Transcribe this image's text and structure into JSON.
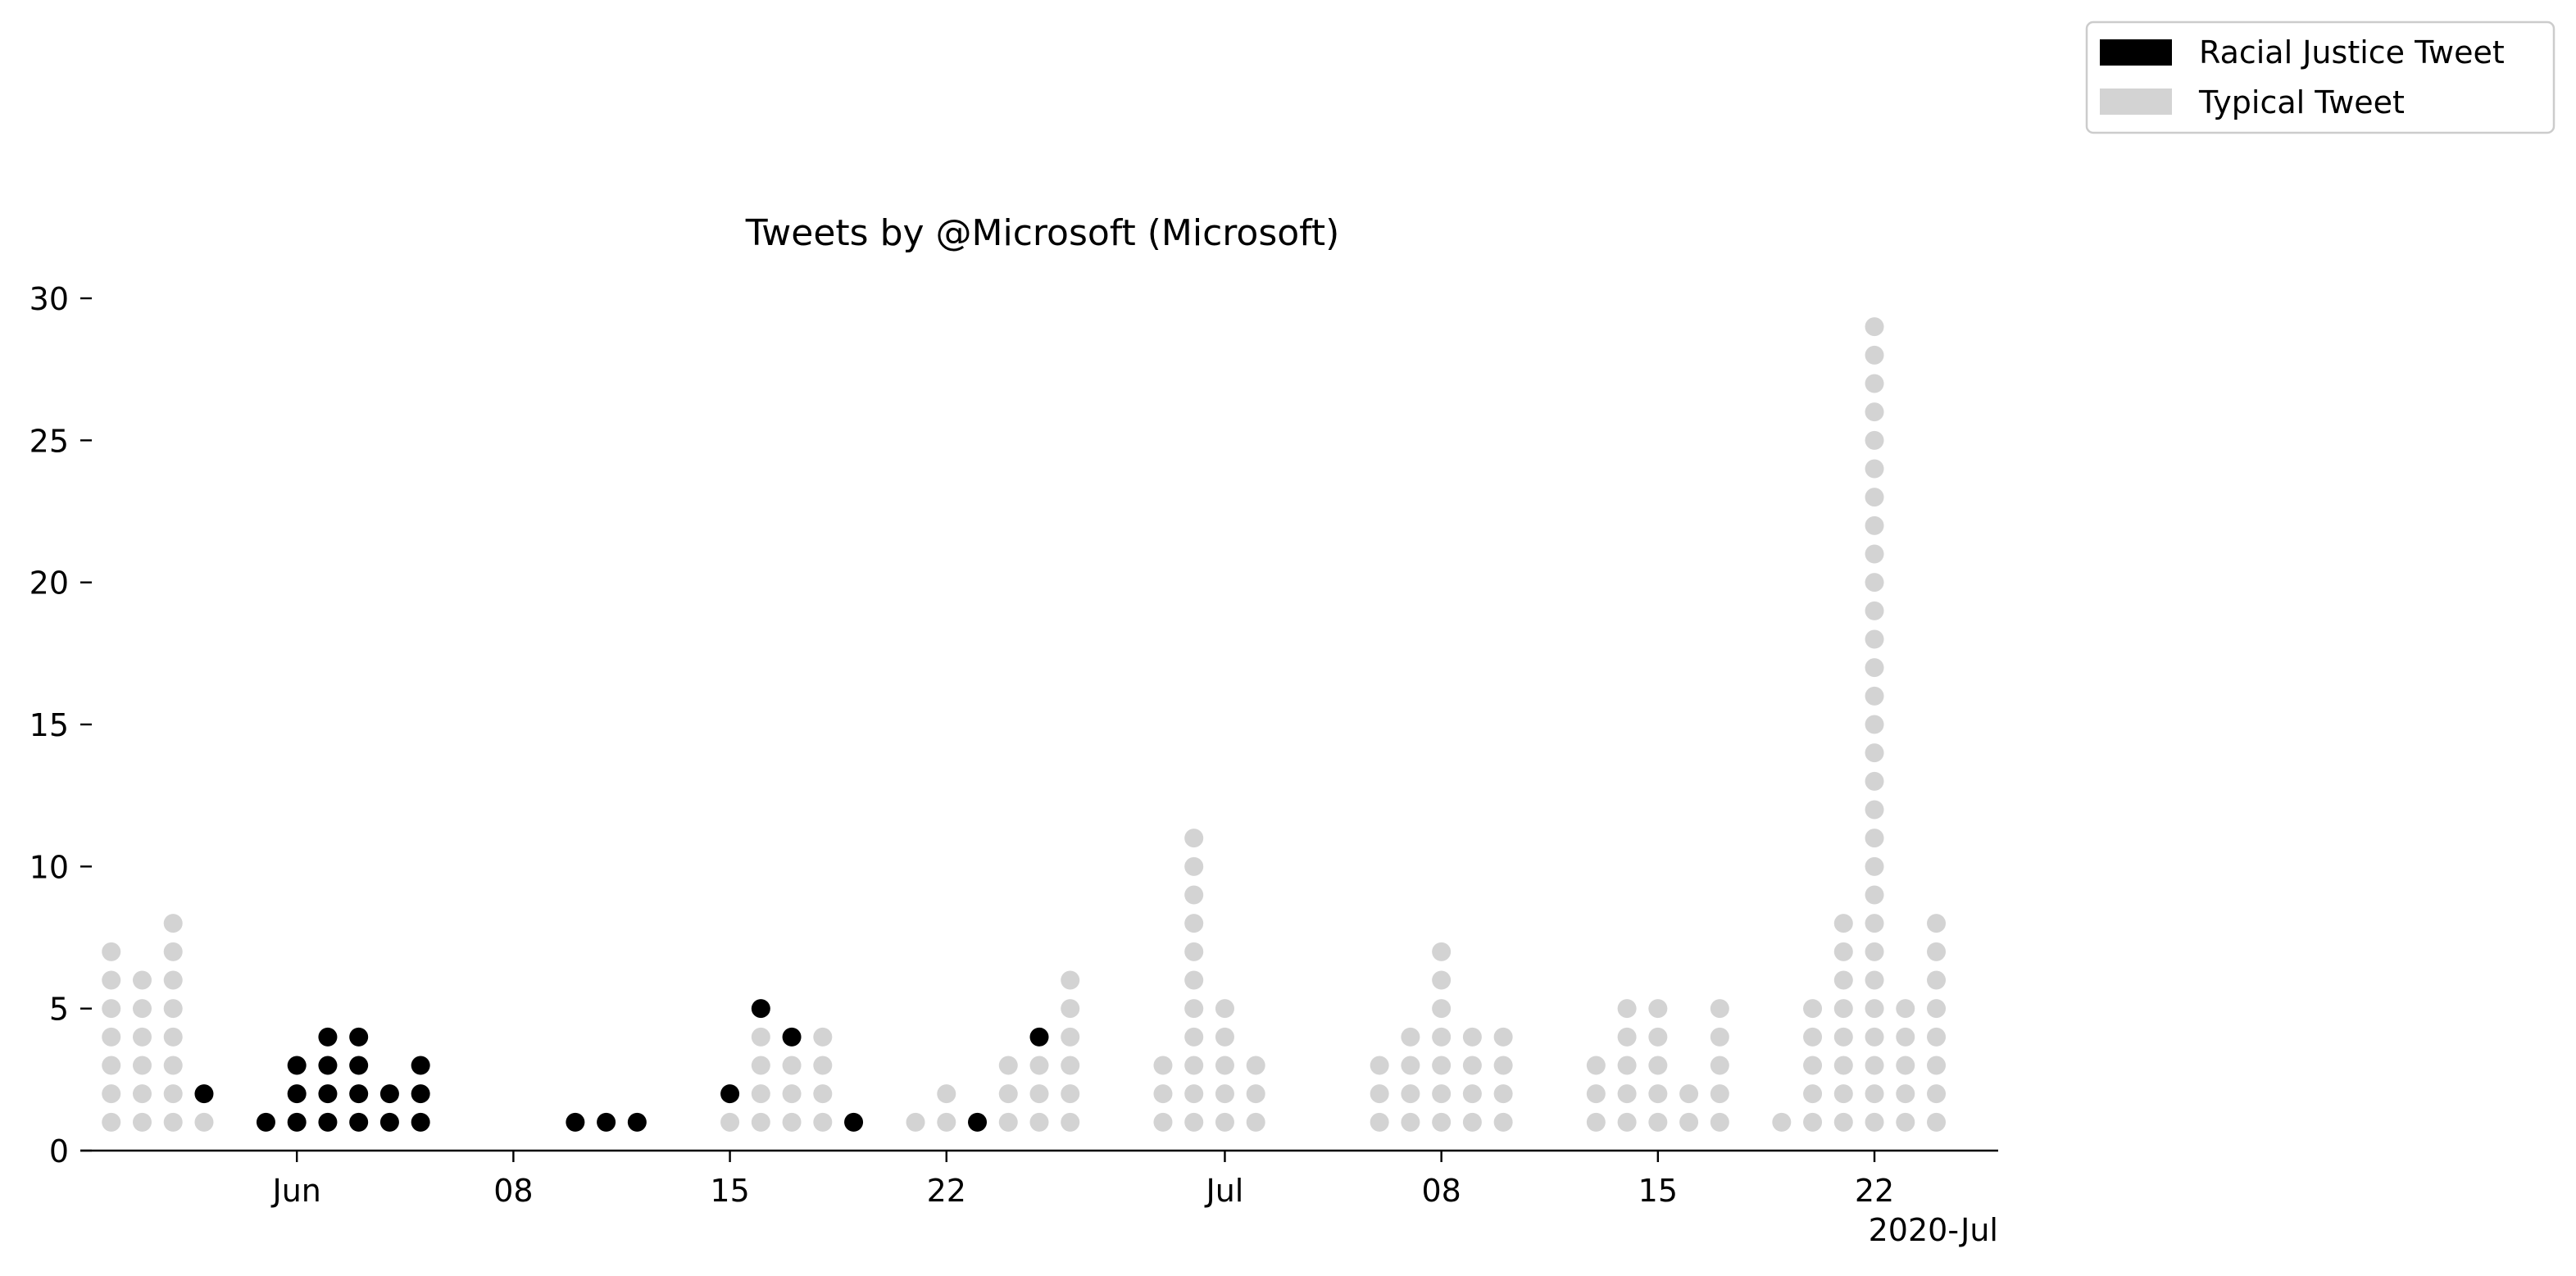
{
  "chart_data": {
    "type": "scatter",
    "title": "Tweets by @Microsoft (Microsoft)",
    "xlabel": "",
    "ylabel": "",
    "ylim": [
      0,
      30
    ],
    "xlim": [
      "2020-05-25",
      "2020-07-26"
    ],
    "yticks": [
      0,
      5,
      10,
      15,
      20,
      25,
      30
    ],
    "xticks": [
      {
        "date": "2020-06-01",
        "label": "Jun"
      },
      {
        "date": "2020-06-08",
        "label": "08"
      },
      {
        "date": "2020-06-15",
        "label": "15"
      },
      {
        "date": "2020-06-22",
        "label": "22"
      },
      {
        "date": "2020-07-01",
        "label": "Jul"
      },
      {
        "date": "2020-07-08",
        "label": "08"
      },
      {
        "date": "2020-07-15",
        "label": "15"
      },
      {
        "date": "2020-07-22",
        "label": "22"
      }
    ],
    "offset_label": "2020-Jul",
    "legend_position": "outside-top-right",
    "grid": false,
    "colors": {
      "racial_justice": "#000000",
      "typical": "#d3d3d3"
    },
    "series": [
      {
        "name": "Racial Justice Tweet",
        "days": [
          {
            "date": "2020-05-29",
            "count": 1
          },
          {
            "date": "2020-05-31",
            "count": 1
          },
          {
            "date": "2020-06-01",
            "count": 3
          },
          {
            "date": "2020-06-02",
            "count": 4
          },
          {
            "date": "2020-06-03",
            "count": 4
          },
          {
            "date": "2020-06-04",
            "count": 2
          },
          {
            "date": "2020-06-05",
            "count": 3
          },
          {
            "date": "2020-06-10",
            "count": 1
          },
          {
            "date": "2020-06-11",
            "count": 1
          },
          {
            "date": "2020-06-12",
            "count": 1
          },
          {
            "date": "2020-06-15",
            "count": 1
          },
          {
            "date": "2020-06-16",
            "count": 1
          },
          {
            "date": "2020-06-17",
            "count": 1
          },
          {
            "date": "2020-06-19",
            "count": 1
          },
          {
            "date": "2020-06-23",
            "count": 1
          },
          {
            "date": "2020-06-25",
            "count": 1
          }
        ]
      },
      {
        "name": "Typical Tweet",
        "days": [
          {
            "date": "2020-05-26",
            "count": 7
          },
          {
            "date": "2020-05-27",
            "count": 6
          },
          {
            "date": "2020-05-28",
            "count": 8
          },
          {
            "date": "2020-05-29",
            "count": 1
          },
          {
            "date": "2020-06-15",
            "count": 1
          },
          {
            "date": "2020-06-16",
            "count": 4
          },
          {
            "date": "2020-06-17",
            "count": 3
          },
          {
            "date": "2020-06-18",
            "count": 4
          },
          {
            "date": "2020-06-21",
            "count": 1
          },
          {
            "date": "2020-06-22",
            "count": 2
          },
          {
            "date": "2020-06-24",
            "count": 3
          },
          {
            "date": "2020-06-25",
            "count": 3
          },
          {
            "date": "2020-06-26",
            "count": 6
          },
          {
            "date": "2020-06-29",
            "count": 3
          },
          {
            "date": "2020-06-30",
            "count": 11
          },
          {
            "date": "2020-07-01",
            "count": 5
          },
          {
            "date": "2020-07-02",
            "count": 3
          },
          {
            "date": "2020-07-06",
            "count": 3
          },
          {
            "date": "2020-07-07",
            "count": 4
          },
          {
            "date": "2020-07-08",
            "count": 7
          },
          {
            "date": "2020-07-09",
            "count": 4
          },
          {
            "date": "2020-07-10",
            "count": 4
          },
          {
            "date": "2020-07-13",
            "count": 3
          },
          {
            "date": "2020-07-14",
            "count": 5
          },
          {
            "date": "2020-07-15",
            "count": 5
          },
          {
            "date": "2020-07-16",
            "count": 2
          },
          {
            "date": "2020-07-17",
            "count": 5
          },
          {
            "date": "2020-07-19",
            "count": 1
          },
          {
            "date": "2020-07-20",
            "count": 5
          },
          {
            "date": "2020-07-21",
            "count": 8
          },
          {
            "date": "2020-07-22",
            "count": 29
          },
          {
            "date": "2020-07-23",
            "count": 5
          },
          {
            "date": "2020-07-24",
            "count": 8
          }
        ]
      }
    ]
  }
}
